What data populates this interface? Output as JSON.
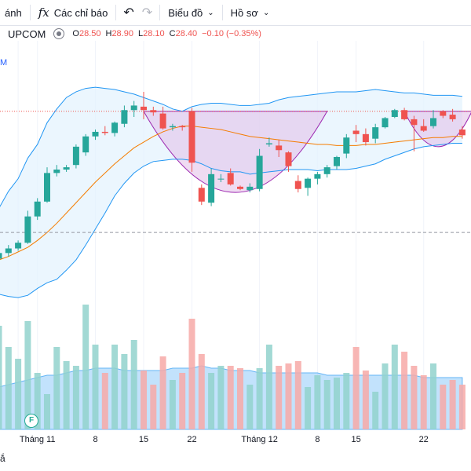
{
  "toolbar": {
    "tab_fragment": "ánh",
    "indicators_icon": "fx",
    "indicators_label": "Các chỉ báo",
    "undo_icon": "↶",
    "redo_icon": "↷",
    "chart_type_label": "Biểu đồ",
    "profile_label": "Hồ sơ"
  },
  "legend": {
    "symbol": "UPCOM",
    "open_label": "O",
    "open_value": "28.50",
    "high_label": "H",
    "high_value": "28.90",
    "low_label": "L",
    "low_value": "28.10",
    "close_label": "C",
    "close_value": "28.40",
    "change": "−0.10 (−0.35%)"
  },
  "side_marker": "M",
  "badge": "F",
  "bottom_fragment": "ắ",
  "colors": {
    "up": "#26a69a",
    "down": "#ef5350",
    "bb_line": "#2196f3",
    "bb_fill": "#e3f2fd",
    "ma": "#f57c00",
    "pattern": "#9c27b0",
    "pattern_fill": "#e1bee7",
    "volume_up": "#92d2cc",
    "volume_down": "#f7a9a7",
    "volume_area": "#90caf9"
  },
  "x_axis": {
    "labels": [
      {
        "text": "Tháng 11",
        "i": 4
      },
      {
        "text": "8",
        "i": 10
      },
      {
        "text": "15",
        "i": 15
      },
      {
        "text": "22",
        "i": 20
      },
      {
        "text": "Tháng 12",
        "i": 27
      },
      {
        "text": "8",
        "i": 33
      },
      {
        "text": "15",
        "i": 37
      },
      {
        "text": "22",
        "i": 44
      }
    ]
  },
  "chart_data": {
    "type": "candlestick",
    "ohlc": [
      [
        21.0,
        21.8,
        20.6,
        21.5
      ],
      [
        21.5,
        22.2,
        21.2,
        21.9
      ],
      [
        21.9,
        22.6,
        21.7,
        22.4
      ],
      [
        22.4,
        25.2,
        22.3,
        24.7
      ],
      [
        24.7,
        26.3,
        24.4,
        26.0
      ],
      [
        26.0,
        29.0,
        25.9,
        28.5
      ],
      [
        28.5,
        29.2,
        28.2,
        28.8
      ],
      [
        28.8,
        29.2,
        28.6,
        29.0
      ],
      [
        29.2,
        31.0,
        28.9,
        30.8
      ],
      [
        30.3,
        31.9,
        30.0,
        31.7
      ],
      [
        31.7,
        32.3,
        31.4,
        32.1
      ],
      [
        32.1,
        32.6,
        31.8,
        32.0
      ],
      [
        32.0,
        33.0,
        31.7,
        32.9
      ],
      [
        32.8,
        34.4,
        32.5,
        34.0
      ],
      [
        34.0,
        34.8,
        33.4,
        34.4
      ],
      [
        34.3,
        35.6,
        33.2,
        34.0
      ],
      [
        34.0,
        34.3,
        33.5,
        33.8
      ],
      [
        33.7,
        34.3,
        32.3,
        32.4
      ],
      [
        32.5,
        32.8,
        32.2,
        32.6
      ],
      [
        32.6,
        32.7,
        32.2,
        32.5
      ],
      [
        33.9,
        34.2,
        28.6,
        29.4
      ],
      [
        27.2,
        27.5,
        25.7,
        26.0
      ],
      [
        25.9,
        28.9,
        25.6,
        28.4
      ],
      [
        28.0,
        28.4,
        27.7,
        28.0
      ],
      [
        28.5,
        28.9,
        27.4,
        27.5
      ],
      [
        27.3,
        27.4,
        27.0,
        27.1
      ],
      [
        27.0,
        27.6,
        26.8,
        27.3
      ],
      [
        27.1,
        30.6,
        26.9,
        30.0
      ],
      [
        31.0,
        31.6,
        30.8,
        31.1
      ],
      [
        30.9,
        31.4,
        29.9,
        30.5
      ],
      [
        30.3,
        30.4,
        28.6,
        29.1
      ],
      [
        27.8,
        28.3,
        26.8,
        27.1
      ],
      [
        27.2,
        28.1,
        26.5,
        28.0
      ],
      [
        28.0,
        28.6,
        27.5,
        28.4
      ],
      [
        28.4,
        29.2,
        28.1,
        29.0
      ],
      [
        29.1,
        30.0,
        28.8,
        29.9
      ],
      [
        30.2,
        31.9,
        29.8,
        31.6
      ],
      [
        32.2,
        32.7,
        31.2,
        31.9
      ],
      [
        31.9,
        32.4,
        30.9,
        31.2
      ],
      [
        31.5,
        32.8,
        31.1,
        32.5
      ],
      [
        32.5,
        33.4,
        32.4,
        33.3
      ],
      [
        33.4,
        34.1,
        33.3,
        34.0
      ],
      [
        34.0,
        34.2,
        33.1,
        33.2
      ],
      [
        33.2,
        33.5,
        30.4,
        32.7
      ],
      [
        32.6,
        33.2,
        32.1,
        32.2
      ],
      [
        32.6,
        34.0,
        32.4,
        33.3
      ],
      [
        33.9,
        34.0,
        33.3,
        33.5
      ],
      [
        33.6,
        34.1,
        33.0,
        33.2
      ],
      [
        32.3,
        32.6,
        31.5,
        31.8
      ]
    ],
    "volume": [
      4.4,
      3.5,
      3.0,
      4.6,
      2.4,
      1.5,
      3.5,
      2.9,
      2.7,
      5.3,
      3.6,
      2.4,
      3.6,
      3.2,
      3.8,
      2.5,
      1.9,
      3.1,
      2.1,
      2.4,
      4.7,
      3.2,
      2.4,
      2.7,
      2.7,
      2.6,
      1.9,
      2.6,
      3.6,
      2.7,
      2.8,
      2.9,
      1.8,
      2.3,
      2.1,
      2.2,
      2.4,
      3.5,
      2.5,
      1.6,
      2.8,
      3.6,
      3.3,
      2.7,
      2.3,
      2.8,
      1.9,
      2.1,
      1.9
    ],
    "bb_upper": [
      25.4,
      26.9,
      28.0,
      29.8,
      31.0,
      32.9,
      34.1,
      35.1,
      35.6,
      35.9,
      36.0,
      35.9,
      35.8,
      35.6,
      35.4,
      35.1,
      34.8,
      34.5,
      34.1,
      33.9,
      34.3,
      34.5,
      34.6,
      34.6,
      34.5,
      34.4,
      34.4,
      34.5,
      34.6,
      34.9,
      35.1,
      35.2,
      35.3,
      35.4,
      35.5,
      35.6,
      35.6,
      35.6,
      35.7,
      35.8,
      35.7,
      35.6,
      35.5,
      35.5,
      35.4,
      35.3,
      35.3,
      35.3,
      35.2
    ],
    "bb_lower": [
      17.9,
      17.7,
      17.6,
      17.8,
      18.4,
      18.9,
      19.2,
      20.0,
      20.9,
      22.2,
      23.6,
      25.0,
      26.5,
      27.6,
      28.5,
      29.1,
      29.5,
      29.6,
      29.7,
      29.7,
      29.6,
      29.3,
      28.9,
      28.7,
      28.6,
      28.6,
      28.4,
      28.5,
      28.6,
      28.7,
      28.8,
      28.8,
      28.8,
      28.7,
      28.8,
      28.8,
      28.8,
      28.9,
      29.1,
      29.3,
      29.7,
      30.0,
      30.3,
      30.6,
      30.8,
      30.9,
      31.0,
      31.1,
      31.1
    ],
    "ma": [
      20.9,
      21.2,
      21.6,
      22.0,
      22.6,
      23.3,
      24.1,
      25.0,
      25.9,
      26.8,
      27.7,
      28.5,
      29.3,
      30.0,
      30.7,
      31.2,
      31.7,
      32.1,
      32.4,
      32.6,
      32.6,
      32.5,
      32.4,
      32.3,
      32.1,
      31.9,
      31.7,
      31.6,
      31.5,
      31.4,
      31.3,
      31.2,
      31.1,
      31.0,
      31.0,
      30.9,
      30.9,
      30.9,
      31.0,
      31.0,
      31.1,
      31.2,
      31.3,
      31.4,
      31.5,
      31.6,
      31.6,
      31.7,
      31.7
    ],
    "volume_ma": [
      1.8,
      1.9,
      2.0,
      2.1,
      2.2,
      2.3,
      2.3,
      2.4,
      2.5,
      2.5,
      2.6,
      2.6,
      2.6,
      2.5,
      2.5,
      2.5,
      2.5,
      2.5,
      2.6,
      2.6,
      2.6,
      2.7,
      2.6,
      2.6,
      2.5,
      2.5,
      2.5,
      2.4,
      2.4,
      2.4,
      2.4,
      2.4,
      2.4,
      2.4,
      2.3,
      2.3,
      2.3,
      2.3,
      2.3,
      2.3,
      2.3,
      2.3,
      2.3,
      2.3,
      2.2,
      2.2,
      2.2,
      2.2,
      2.2
    ],
    "ref_price": 33.9,
    "support_price": 23.3
  }
}
